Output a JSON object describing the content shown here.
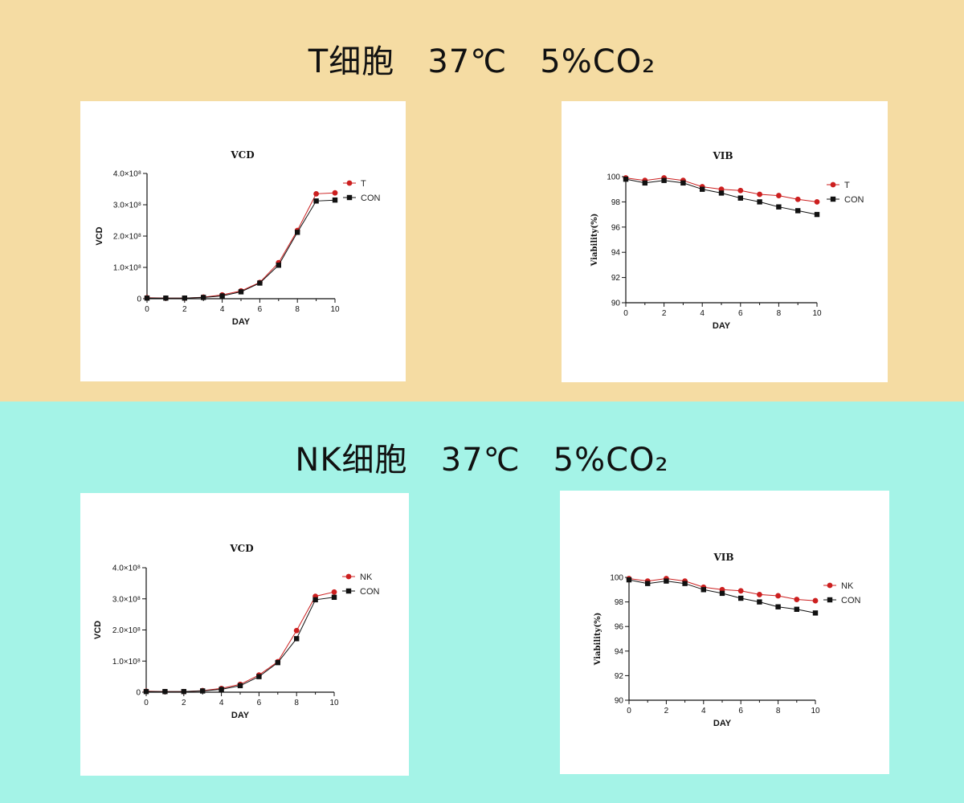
{
  "colors": {
    "t_band": "#f5dca3",
    "nk_band": "#a4f3e7",
    "series_red": "#cc1f1f",
    "series_black": "#111111"
  },
  "sections": [
    {
      "title": "T细胞   37℃   5%CO₂",
      "charts": [
        {
          "card": "t-vcd"
        },
        {
          "card": "t-vib"
        }
      ]
    },
    {
      "title": "NK细胞   37℃   5%CO₂",
      "charts": [
        {
          "card": "nk-vcd"
        },
        {
          "card": "nk-vib"
        }
      ]
    }
  ],
  "chart_data": [
    {
      "id": "t-vcd",
      "type": "line",
      "title": "VCD",
      "xlabel": "DAY",
      "ylabel": "VCD",
      "x": [
        0,
        1,
        2,
        3,
        4,
        5,
        6,
        7,
        8,
        9,
        10
      ],
      "xticks": [
        0,
        2,
        4,
        6,
        8,
        10
      ],
      "xlim": [
        0,
        10
      ],
      "ylim": [
        0,
        4
      ],
      "yticks": [
        0,
        1,
        2,
        3,
        4
      ],
      "ytick_labels": [
        "0",
        "1.0×10⁸",
        "2.0×10⁸",
        "3.0×10⁸",
        "4.0×10⁸"
      ],
      "legend": "top-right",
      "grid": false,
      "series": [
        {
          "name": "T",
          "marker": "circle",
          "color": "#cc1f1f",
          "values": [
            0.03,
            0.02,
            0.02,
            0.05,
            0.12,
            0.25,
            0.52,
            1.15,
            2.18,
            3.35,
            3.38
          ]
        },
        {
          "name": "CON",
          "marker": "square",
          "color": "#111111",
          "values": [
            0.02,
            0.02,
            0.02,
            0.04,
            0.09,
            0.22,
            0.5,
            1.07,
            2.12,
            3.12,
            3.15
          ]
        }
      ]
    },
    {
      "id": "t-vib",
      "type": "line",
      "title": "VIB",
      "xlabel": "DAY",
      "ylabel": "Viability(%)",
      "x": [
        0,
        1,
        2,
        3,
        4,
        5,
        6,
        7,
        8,
        9,
        10
      ],
      "xticks": [
        0,
        2,
        4,
        6,
        8,
        10
      ],
      "xlim": [
        0,
        10
      ],
      "ylim": [
        90,
        100
      ],
      "yticks": [
        90,
        92,
        94,
        96,
        98,
        100
      ],
      "ytick_labels": [
        "90",
        "92",
        "94",
        "96",
        "98",
        "100"
      ],
      "legend": "top-right",
      "grid": false,
      "series": [
        {
          "name": "T",
          "marker": "circle",
          "color": "#cc1f1f",
          "values": [
            99.9,
            99.7,
            99.9,
            99.7,
            99.2,
            99.0,
            98.9,
            98.6,
            98.5,
            98.2,
            98.0
          ]
        },
        {
          "name": "CON",
          "marker": "square",
          "color": "#111111",
          "values": [
            99.8,
            99.5,
            99.7,
            99.5,
            99.0,
            98.7,
            98.3,
            98.0,
            97.6,
            97.3,
            97.0
          ]
        }
      ]
    },
    {
      "id": "nk-vcd",
      "type": "line",
      "title": "VCD",
      "xlabel": "DAY",
      "ylabel": "VCD",
      "x": [
        0,
        1,
        2,
        3,
        4,
        5,
        6,
        7,
        8,
        9,
        10
      ],
      "xticks": [
        0,
        2,
        4,
        6,
        8,
        10
      ],
      "xlim": [
        0,
        10
      ],
      "ylim": [
        0,
        4
      ],
      "yticks": [
        0,
        1,
        2,
        3,
        4
      ],
      "ytick_labels": [
        "0",
        "1.0×10⁸",
        "2.0×10⁸",
        "3.0×10⁸",
        "4.0×10⁸"
      ],
      "legend": "top-right",
      "grid": false,
      "series": [
        {
          "name": "NK",
          "marker": "circle",
          "color": "#cc1f1f",
          "values": [
            0.03,
            0.02,
            0.02,
            0.05,
            0.12,
            0.25,
            0.55,
            0.98,
            1.98,
            3.08,
            3.22
          ]
        },
        {
          "name": "CON",
          "marker": "square",
          "color": "#111111",
          "values": [
            0.02,
            0.02,
            0.02,
            0.04,
            0.09,
            0.21,
            0.5,
            0.95,
            1.72,
            2.97,
            3.05
          ]
        }
      ]
    },
    {
      "id": "nk-vib",
      "type": "line",
      "title": "VIB",
      "xlabel": "DAY",
      "ylabel": "Viability(%)",
      "x": [
        0,
        1,
        2,
        3,
        4,
        5,
        6,
        7,
        8,
        9,
        10
      ],
      "xticks": [
        0,
        2,
        4,
        6,
        8,
        10
      ],
      "xlim": [
        0,
        10
      ],
      "ylim": [
        90,
        100
      ],
      "yticks": [
        90,
        92,
        94,
        96,
        98,
        100
      ],
      "ytick_labels": [
        "90",
        "92",
        "94",
        "96",
        "98",
        "100"
      ],
      "legend": "top-right",
      "grid": false,
      "series": [
        {
          "name": "NK",
          "marker": "circle",
          "color": "#cc1f1f",
          "values": [
            99.9,
            99.7,
            99.9,
            99.7,
            99.2,
            99.0,
            98.9,
            98.6,
            98.5,
            98.2,
            98.1
          ]
        },
        {
          "name": "CON",
          "marker": "square",
          "color": "#111111",
          "values": [
            99.8,
            99.5,
            99.7,
            99.5,
            99.0,
            98.7,
            98.3,
            98.0,
            97.6,
            97.4,
            97.1
          ]
        }
      ]
    }
  ]
}
